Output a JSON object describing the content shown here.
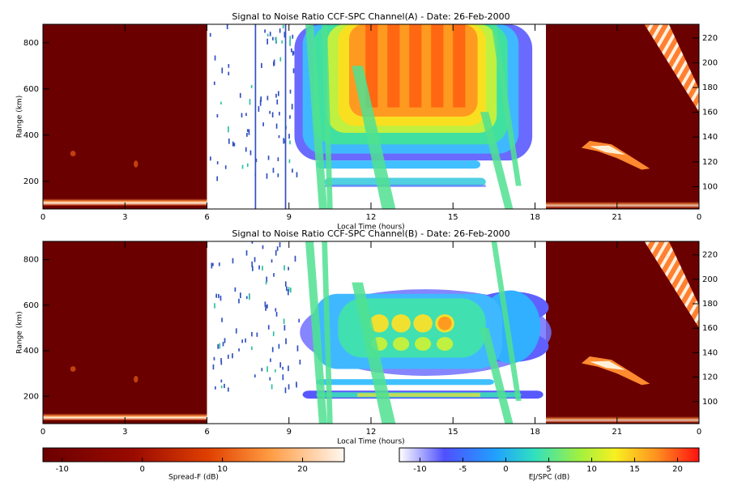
{
  "chart_data": [
    {
      "type": "heatmap",
      "title": "Signal to Noise Ratio CCF-SPC Channel(A) - Date: 26-Feb-2000",
      "xlabel": "Local Time (hours)",
      "ylabel": "Range (km)",
      "xlim": [
        0,
        24
      ],
      "xticks": [
        {
          "value": 0,
          "label": "0"
        },
        3,
        6,
        9,
        12,
        15,
        18,
        21,
        {
          "value": 24,
          "label": "0"
        }
      ],
      "ylim": [
        80,
        880
      ],
      "yticks": [
        200,
        400,
        600,
        800
      ],
      "y2lim": [
        82,
        231
      ],
      "y2ticks": [
        100,
        120,
        140,
        160,
        180,
        200,
        220
      ]
    },
    {
      "type": "heatmap",
      "title": "Signal to Noise Ratio CCF-SPC Channel(B) - Date: 26-Feb-2000",
      "xlabel": "Local Time (hours)",
      "ylabel": "Range (km)",
      "xlim": [
        0,
        24
      ],
      "xticks": [
        {
          "value": 0,
          "label": "0"
        },
        3,
        6,
        9,
        12,
        15,
        18,
        21,
        {
          "value": 24,
          "label": "0"
        }
      ],
      "ylim": [
        80,
        880
      ],
      "yticks": [
        200,
        400,
        600,
        800
      ],
      "y2lim": [
        82,
        231
      ],
      "y2ticks": [
        100,
        120,
        140,
        160,
        180,
        200,
        220
      ]
    }
  ],
  "colorbars": [
    {
      "label": "Spread-F (dB)",
      "clim": [
        -12.4,
        25.2
      ],
      "ticks": [
        -10,
        0,
        10,
        20
      ]
    },
    {
      "label": "EJ/SPC (dB)",
      "clim": [
        -12.4,
        22.5
      ],
      "ticks": [
        -10,
        -5,
        0,
        5,
        10,
        15,
        20
      ]
    }
  ]
}
